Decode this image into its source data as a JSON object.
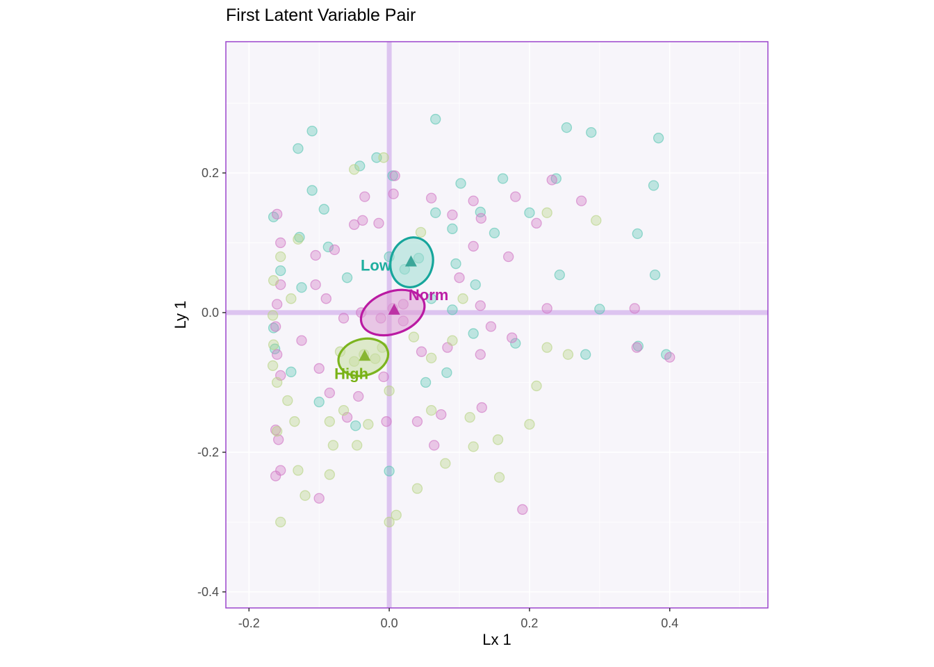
{
  "chart_data": {
    "type": "scatter",
    "title": "First Latent Variable Pair",
    "xlabel": "Lx 1",
    "ylabel": "Ly 1",
    "xlim": [
      -0.233,
      0.54
    ],
    "ylim": [
      -0.423,
      0.388
    ],
    "xticks": [
      -0.2,
      0.0,
      0.2,
      0.4
    ],
    "xtick_labels": [
      "-0.2",
      "0.0",
      "0.2",
      "0.4"
    ],
    "yticks": [
      -0.4,
      -0.2,
      0.0,
      0.2
    ],
    "ytick_labels": [
      "-0.4",
      "-0.2",
      "0.0",
      "0.2"
    ],
    "xticks_minor": [
      -0.1,
      0.1,
      0.3,
      0.5
    ],
    "yticks_minor": [
      -0.3,
      -0.1,
      0.1,
      0.3
    ],
    "grid": true,
    "legend": "none",
    "panel_bg": "#f7f5fa",
    "grid_color": "#ffffff",
    "border_color": "#9b45cc",
    "ref_line_color": "#ddc4f0",
    "tick_color": "#333333",
    "tick_label_color": "#4d4d4d",
    "reference_lines": {
      "x": 0.0,
      "y": 0.0
    },
    "series": [
      {
        "name": "Low",
        "label": "Low",
        "point_color": "#5fc7b5",
        "ellipse_stroke": "#16a59b",
        "ellipse_fill": "#9fdcd2",
        "label_color": "#1fae9f",
        "centroid_color": "#2b9e90",
        "centroid": {
          "x": 0.031,
          "y": 0.073
        },
        "ellipse": {
          "cx": 0.032,
          "cy": 0.072,
          "rx": 0.03,
          "ry": 0.036,
          "angle": 15
        },
        "label_pos": {
          "x": -0.019,
          "y": 0.06
        },
        "points": [
          [
            -0.11,
            0.26
          ],
          [
            -0.13,
            0.235
          ],
          [
            0.066,
            0.277
          ],
          [
            0.253,
            0.265
          ],
          [
            0.288,
            0.258
          ],
          [
            0.384,
            0.25
          ],
          [
            -0.018,
            0.222
          ],
          [
            -0.042,
            0.21
          ],
          [
            0.005,
            0.196
          ],
          [
            0.102,
            0.185
          ],
          [
            0.162,
            0.192
          ],
          [
            0.238,
            0.192
          ],
          [
            0.377,
            0.182
          ],
          [
            -0.11,
            0.175
          ],
          [
            -0.093,
            0.148
          ],
          [
            0.066,
            0.143
          ],
          [
            0.13,
            0.144
          ],
          [
            0.2,
            0.143
          ],
          [
            0.09,
            0.12
          ],
          [
            0.15,
            0.114
          ],
          [
            -0.165,
            0.137
          ],
          [
            -0.128,
            0.108
          ],
          [
            -0.087,
            0.094
          ],
          [
            0.354,
            0.113
          ],
          [
            0.379,
            0.054
          ],
          [
            0.243,
            0.054
          ],
          [
            0.095,
            0.07
          ],
          [
            0.123,
            0.04
          ],
          [
            0.0,
            0.08
          ],
          [
            -0.155,
            0.06
          ],
          [
            -0.125,
            0.036
          ],
          [
            -0.06,
            0.05
          ],
          [
            0.042,
            0.078
          ],
          [
            0.022,
            0.062
          ],
          [
            0.3,
            0.005
          ],
          [
            0.355,
            -0.048
          ],
          [
            0.395,
            -0.06
          ],
          [
            0.28,
            -0.06
          ],
          [
            0.18,
            -0.044
          ],
          [
            0.12,
            -0.03
          ],
          [
            -0.165,
            -0.022
          ],
          [
            -0.163,
            -0.052
          ],
          [
            -0.14,
            -0.085
          ],
          [
            -0.1,
            -0.128
          ],
          [
            -0.048,
            -0.162
          ],
          [
            0.0,
            -0.227
          ],
          [
            0.052,
            -0.1
          ],
          [
            0.082,
            -0.086
          ],
          [
            0.06,
            0.02
          ],
          [
            0.09,
            0.004
          ]
        ]
      },
      {
        "name": "Norm",
        "label": "Norm",
        "point_color": "#d178c5",
        "ellipse_stroke": "#ba1aa2",
        "ellipse_fill": "#dd9fd4",
        "label_color": "#bb1fa5",
        "centroid_color": "#b8279f",
        "centroid": {
          "x": 0.007,
          "y": 0.004
        },
        "ellipse": {
          "cx": 0.005,
          "cy": 0.0,
          "rx": 0.047,
          "ry": 0.03,
          "angle": -20
        },
        "label_pos": {
          "x": 0.056,
          "y": 0.018
        },
        "points": [
          [
            -0.16,
            0.141
          ],
          [
            -0.155,
            0.1
          ],
          [
            -0.105,
            0.082
          ],
          [
            -0.078,
            0.09
          ],
          [
            -0.05,
            0.126
          ],
          [
            -0.038,
            0.132
          ],
          [
            -0.015,
            0.128
          ],
          [
            -0.035,
            0.166
          ],
          [
            0.006,
            0.17
          ],
          [
            0.008,
            0.196
          ],
          [
            0.06,
            0.164
          ],
          [
            0.09,
            0.14
          ],
          [
            0.12,
            0.16
          ],
          [
            0.131,
            0.135
          ],
          [
            0.18,
            0.166
          ],
          [
            0.232,
            0.19
          ],
          [
            0.274,
            0.16
          ],
          [
            0.21,
            0.128
          ],
          [
            0.12,
            0.095
          ],
          [
            0.17,
            0.08
          ],
          [
            0.1,
            0.05
          ],
          [
            0.13,
            0.01
          ],
          [
            0.145,
            -0.02
          ],
          [
            0.175,
            -0.036
          ],
          [
            0.13,
            -0.06
          ],
          [
            0.083,
            -0.05
          ],
          [
            0.046,
            -0.056
          ],
          [
            0.02,
            -0.012
          ],
          [
            0.005,
            0.006
          ],
          [
            0.02,
            0.012
          ],
          [
            -0.012,
            -0.008
          ],
          [
            -0.04,
            0.0
          ],
          [
            -0.065,
            -0.008
          ],
          [
            -0.09,
            0.02
          ],
          [
            -0.105,
            0.04
          ],
          [
            -0.125,
            -0.04
          ],
          [
            -0.155,
            0.04
          ],
          [
            -0.16,
            0.012
          ],
          [
            -0.162,
            -0.02
          ],
          [
            -0.16,
            -0.06
          ],
          [
            -0.155,
            -0.09
          ],
          [
            -0.162,
            -0.168
          ],
          [
            -0.158,
            -0.182
          ],
          [
            -0.155,
            -0.226
          ],
          [
            -0.162,
            -0.234
          ],
          [
            -0.1,
            -0.08
          ],
          [
            -0.085,
            -0.115
          ],
          [
            -0.06,
            -0.15
          ],
          [
            -0.044,
            -0.12
          ],
          [
            -0.008,
            -0.092
          ],
          [
            -0.004,
            -0.156
          ],
          [
            0.04,
            -0.156
          ],
          [
            0.074,
            -0.146
          ],
          [
            0.064,
            -0.19
          ],
          [
            -0.1,
            -0.266
          ],
          [
            0.35,
            0.006
          ],
          [
            0.4,
            -0.064
          ],
          [
            0.353,
            -0.05
          ],
          [
            0.132,
            -0.136
          ],
          [
            0.19,
            -0.282
          ],
          [
            0.225,
            0.006
          ]
        ]
      },
      {
        "name": "High",
        "label": "High",
        "point_color": "#b8d485",
        "ellipse_stroke": "#7cb41f",
        "ellipse_fill": "#c8dea2",
        "label_color": "#79b216",
        "centroid_color": "#7fb024",
        "centroid": {
          "x": -0.035,
          "y": -0.062
        },
        "ellipse": {
          "cx": -0.037,
          "cy": -0.064,
          "rx": 0.036,
          "ry": 0.026,
          "angle": -15
        },
        "label_pos": {
          "x": -0.054,
          "y": -0.095
        },
        "points": [
          [
            -0.13,
            0.105
          ],
          [
            -0.155,
            0.08
          ],
          [
            -0.165,
            0.046
          ],
          [
            -0.14,
            0.02
          ],
          [
            -0.166,
            -0.004
          ],
          [
            -0.165,
            -0.046
          ],
          [
            -0.166,
            -0.076
          ],
          [
            -0.16,
            -0.1
          ],
          [
            -0.145,
            -0.126
          ],
          [
            -0.135,
            -0.156
          ],
          [
            -0.16,
            -0.17
          ],
          [
            -0.13,
            -0.226
          ],
          [
            -0.155,
            -0.3
          ],
          [
            -0.12,
            -0.262
          ],
          [
            -0.085,
            -0.232
          ],
          [
            -0.08,
            -0.19
          ],
          [
            -0.046,
            -0.19
          ],
          [
            -0.085,
            -0.156
          ],
          [
            -0.065,
            -0.14
          ],
          [
            -0.05,
            -0.07
          ],
          [
            -0.07,
            -0.056
          ],
          [
            -0.036,
            -0.06
          ],
          [
            -0.02,
            -0.066
          ],
          [
            -0.01,
            -0.05
          ],
          [
            0.0,
            -0.112
          ],
          [
            -0.03,
            -0.16
          ],
          [
            0.01,
            -0.29
          ],
          [
            0.04,
            -0.252
          ],
          [
            0.08,
            -0.216
          ],
          [
            0.115,
            -0.15
          ],
          [
            0.155,
            -0.182
          ],
          [
            0.157,
            -0.236
          ],
          [
            0.2,
            -0.16
          ],
          [
            0.21,
            -0.105
          ],
          [
            0.255,
            -0.06
          ],
          [
            0.225,
            -0.05
          ],
          [
            0.06,
            -0.065
          ],
          [
            0.09,
            -0.04
          ],
          [
            0.105,
            0.02
          ],
          [
            0.045,
            0.115
          ],
          [
            0.225,
            0.143
          ],
          [
            0.295,
            0.132
          ],
          [
            -0.05,
            0.205
          ],
          [
            -0.008,
            0.222
          ],
          [
            0.035,
            -0.035
          ],
          [
            0.0,
            -0.3
          ],
          [
            0.06,
            -0.14
          ],
          [
            0.12,
            -0.192
          ]
        ]
      }
    ]
  }
}
